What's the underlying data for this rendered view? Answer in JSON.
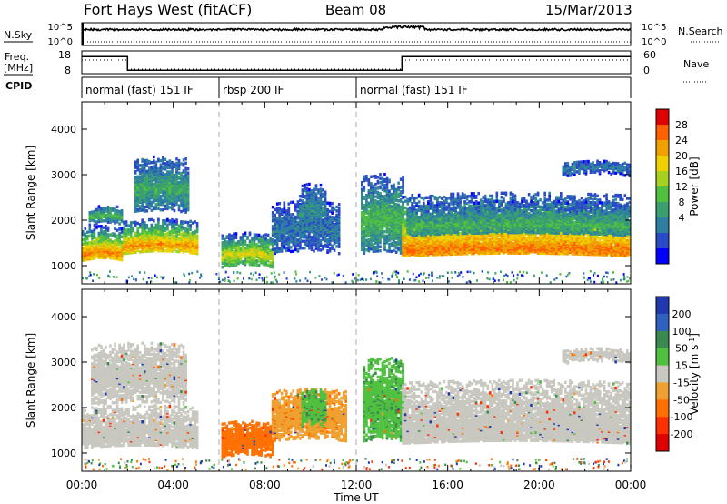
{
  "header": {
    "title": "Fort Hays West (fitACF)",
    "beam": "Beam 08",
    "date": "15/Mar/2013"
  },
  "summary": {
    "nsky_label": "N.Sky",
    "nsearch_label": "N.Search",
    "freq_label_1": "Freq.",
    "freq_label_2": "[MHz]",
    "nave_label": "Nave",
    "cpid_label": "CPID",
    "nsky_ticks": [
      "10^5",
      "10^0"
    ],
    "nsearch_ticks": [
      "10^5",
      "10^0"
    ],
    "freq_ticks": [
      "18",
      "8"
    ],
    "nave_ticks": [
      "60",
      "0"
    ],
    "cpid_segments": [
      {
        "label": "normal (fast) 151 IF",
        "start": 0,
        "end": 6
      },
      {
        "label": "rbsp 200 IF",
        "start": 6,
        "end": 12
      },
      {
        "label": "normal (fast) 151 IF",
        "start": 12,
        "end": 24
      }
    ],
    "freq_series": [
      {
        "x": 0,
        "y": 15.5
      },
      {
        "x": 2.0,
        "y": 15.5
      },
      {
        "x": 2.0,
        "y": 9.5
      },
      {
        "x": 14.0,
        "y": 9.5
      },
      {
        "x": 14.0,
        "y": 15.5
      },
      {
        "x": 24,
        "y": 15.5
      }
    ],
    "nave_series": [
      {
        "x": 0,
        "y": 14
      },
      {
        "x": 2.0,
        "y": 14
      },
      {
        "x": 2.0,
        "y": 10
      },
      {
        "x": 14.0,
        "y": 10
      },
      {
        "x": 14.0,
        "y": 14
      },
      {
        "x": 24,
        "y": 14
      }
    ]
  },
  "chart_data": [
    {
      "type": "heatmap",
      "ylabel": "Slant Range [km]",
      "xlim": [
        0,
        24
      ],
      "ylim": [
        600,
        4600
      ],
      "yticks": [
        "4000",
        "3000",
        "2000",
        "1000"
      ],
      "colorbar": {
        "label": "Power [dB]",
        "range": [
          0,
          32
        ],
        "ticks": [
          "28",
          "24",
          "20",
          "16",
          "12",
          "8",
          "4"
        ],
        "colors": [
          "#0000ff",
          "#2a4ac8",
          "#2f80a0",
          "#3aa070",
          "#50c040",
          "#a8d020",
          "#f0d000",
          "#f0a000",
          "#ff6000",
          "#e00000"
        ]
      },
      "features": [
        {
          "start": 0.0,
          "end": 1.8,
          "lo": 1150,
          "hi": 1850,
          "peak": 1280,
          "value": 26
        },
        {
          "start": 0.3,
          "end": 1.8,
          "lo": 1900,
          "hi": 2300,
          "peak": 2100,
          "value": 14
        },
        {
          "start": 1.8,
          "end": 5.0,
          "lo": 1300,
          "hi": 2000,
          "peak": 1450,
          "value": 25
        },
        {
          "start": 2.3,
          "end": 4.6,
          "lo": 2200,
          "hi": 3400,
          "peak": 2700,
          "value": 12
        },
        {
          "start": 6.1,
          "end": 8.3,
          "lo": 1000,
          "hi": 1700,
          "peak": 1250,
          "value": 20
        },
        {
          "start": 8.3,
          "end": 11.2,
          "lo": 1300,
          "hi": 2400,
          "peak": 1800,
          "value": 8
        },
        {
          "start": 9.5,
          "end": 10.6,
          "lo": 1900,
          "hi": 2800,
          "peak": 2200,
          "value": 9
        },
        {
          "start": 12.2,
          "end": 14.0,
          "lo": 1300,
          "hi": 3000,
          "peak": 2000,
          "value": 14
        },
        {
          "start": 14.0,
          "end": 24.0,
          "lo": 1250,
          "hi": 2600,
          "peak": 1380,
          "value": 26
        },
        {
          "start": 14.2,
          "end": 24.0,
          "lo": 1700,
          "hi": 2400,
          "peak": 1900,
          "value": 13
        },
        {
          "start": 21.0,
          "end": 24.0,
          "lo": 3000,
          "hi": 3300,
          "peak": 3150,
          "value": 8
        }
      ]
    },
    {
      "type": "heatmap",
      "ylabel": "Slant Range [km]",
      "xlabel": "Time UT",
      "xlim": [
        0,
        24
      ],
      "ylim": [
        600,
        4600
      ],
      "yticks": [
        "4000",
        "3000",
        "2000",
        "1000"
      ],
      "xticks": [
        "00:00",
        "04:00",
        "08:00",
        "12:00",
        "16:00",
        "20:00",
        "00:00"
      ],
      "colorbar": {
        "label": "Velocity [m s",
        "label_sup": "-1",
        "label_end": "]",
        "ticks": [
          "200",
          "100",
          "50",
          "15",
          "-15",
          "-50",
          "-100",
          "-200"
        ],
        "colors": [
          "#2038b0",
          "#3060c0",
          "#3a8a50",
          "#50c040",
          "#c8c8c0",
          "#f0a030",
          "#ff7000",
          "#ff3000",
          "#e00000"
        ]
      },
      "features": [
        {
          "start": 0.0,
          "end": 5.0,
          "lo": 1150,
          "hi": 2050,
          "peak": 1400,
          "value": 0
        },
        {
          "start": 0.4,
          "end": 4.6,
          "lo": 2100,
          "hi": 3400,
          "peak": 2700,
          "value": 0
        },
        {
          "start": 6.1,
          "end": 8.3,
          "lo": 950,
          "hi": 1700,
          "peak": 1250,
          "value": -70
        },
        {
          "start": 8.3,
          "end": 11.5,
          "lo": 1300,
          "hi": 2400,
          "peak": 1800,
          "value": -40
        },
        {
          "start": 9.6,
          "end": 10.6,
          "lo": 1600,
          "hi": 2400,
          "peak": 2000,
          "value": 40
        },
        {
          "start": 12.3,
          "end": 14.0,
          "lo": 1300,
          "hi": 3100,
          "peak": 2000,
          "value": 40
        },
        {
          "start": 14.0,
          "end": 24.0,
          "lo": 1250,
          "hi": 2600,
          "peak": 1500,
          "value": 0
        },
        {
          "start": 21.0,
          "end": 24.0,
          "lo": 3000,
          "hi": 3300,
          "peak": 3150,
          "value": 0
        }
      ]
    }
  ]
}
